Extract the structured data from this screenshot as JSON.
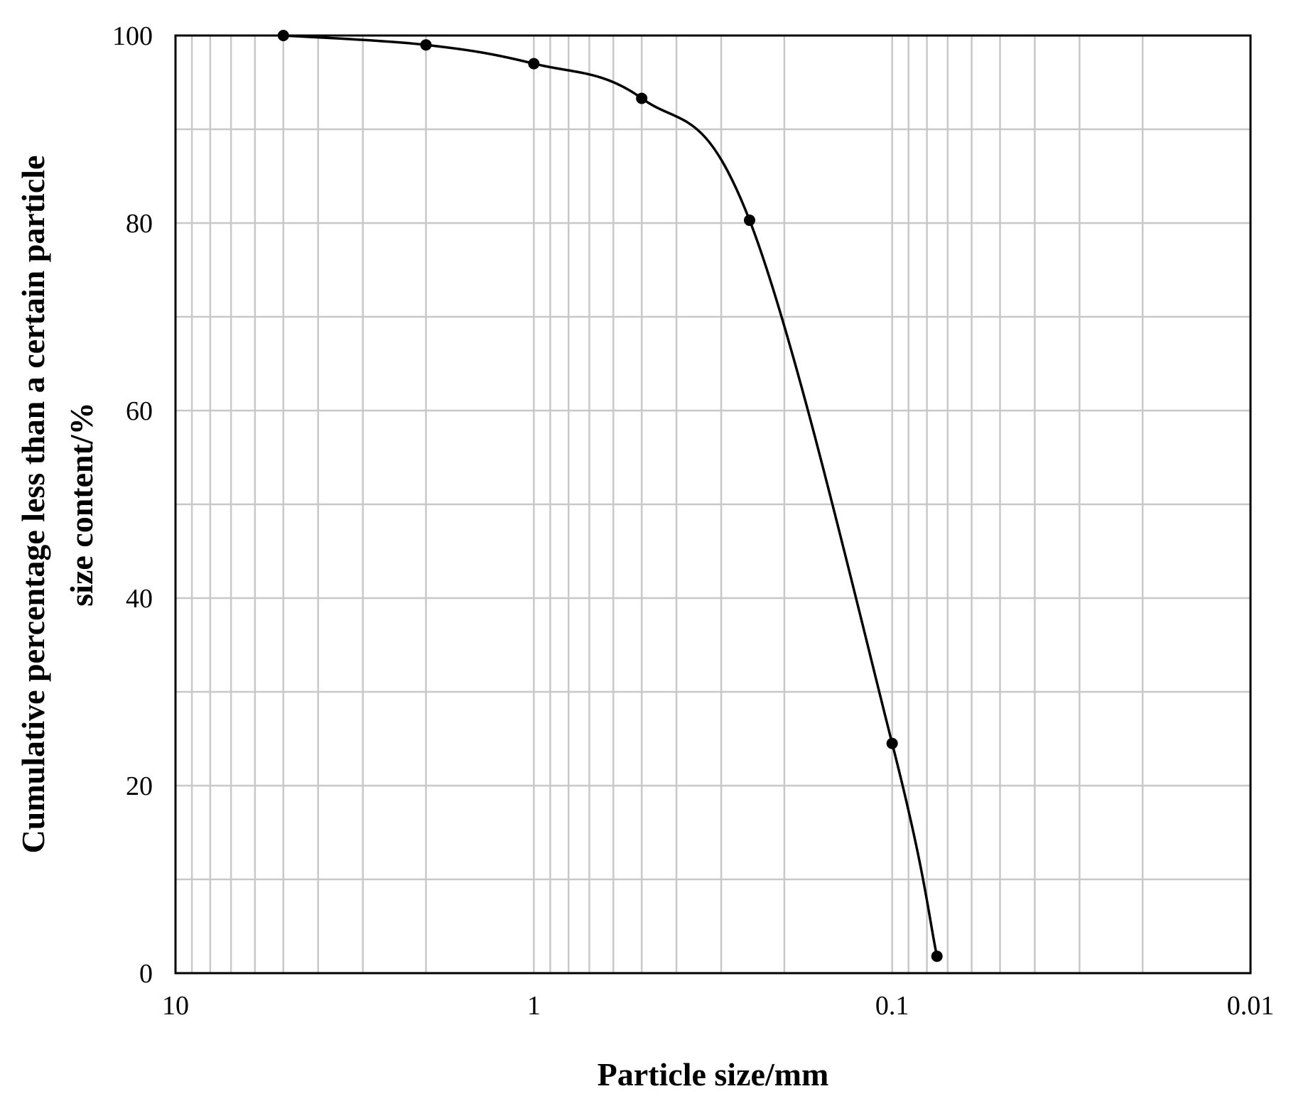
{
  "chart_data": {
    "type": "line",
    "title": "",
    "xlabel": "Particle size/mm",
    "ylabel_lines": [
      "Cumulative percentage less than a certain particle",
      "size content/%"
    ],
    "x_scale": "log",
    "x_reversed": true,
    "xlim": [
      10,
      0.01
    ],
    "ylim": [
      0,
      100
    ],
    "x_ticks": [
      10,
      1,
      0.1,
      0.01
    ],
    "x_tick_labels": [
      "10",
      "1",
      "0.1",
      "0.01"
    ],
    "y_ticks": [
      0,
      20,
      40,
      60,
      80,
      100
    ],
    "y_tick_labels": [
      "0",
      "20",
      "40",
      "60",
      "80",
      "100"
    ],
    "grid": true,
    "series": [
      {
        "color": "#000000",
        "marker": "circle",
        "smooth": true,
        "x": [
          5,
          2,
          1,
          0.5,
          0.25,
          0.1,
          0.075
        ],
        "y": [
          100,
          99,
          97,
          93.3,
          80.3,
          24.5,
          1.8
        ]
      }
    ]
  }
}
